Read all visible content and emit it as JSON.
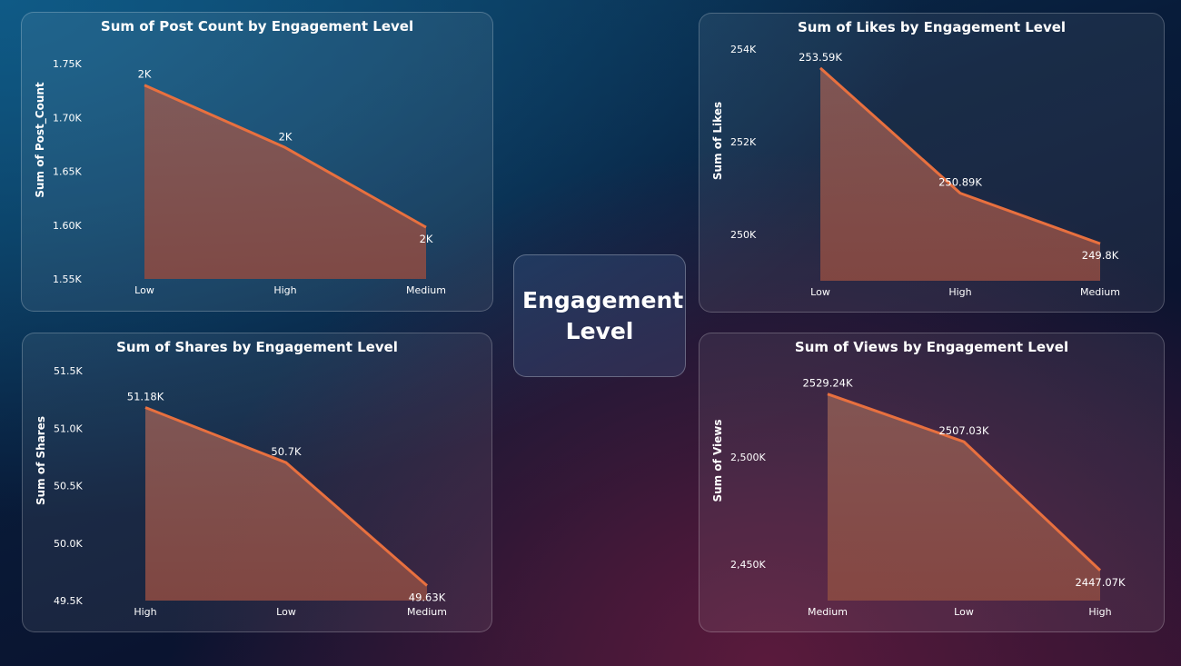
{
  "center_label": "Engagement Level",
  "colors": {
    "line": "#e8703f",
    "fill_top": "#8a5a55",
    "fill_bottom": "#8a4a42"
  },
  "chart_data": [
    {
      "type": "area",
      "title": "Sum of Post Count by Engagement Level",
      "ylabel": "Sum of Post_Count",
      "categories": [
        "Low",
        "High",
        "Medium"
      ],
      "values": [
        1730,
        1672,
        1598
      ],
      "data_labels": [
        "2K",
        "2K",
        "2K"
      ],
      "yticks": [
        1550,
        1600,
        1650,
        1700,
        1750
      ],
      "ytick_labels": [
        "1.55K",
        "1.60K",
        "1.65K",
        "1.70K",
        "1.75K"
      ],
      "ylim": [
        1550,
        1750
      ]
    },
    {
      "type": "area",
      "title": "Sum of Likes by Engagement Level",
      "ylabel": "Sum of Likes",
      "categories": [
        "Low",
        "High",
        "Medium"
      ],
      "values": [
        253590,
        250890,
        249800
      ],
      "data_labels": [
        "253.59K",
        "250.89K",
        "249.8K"
      ],
      "yticks": [
        250000,
        252000,
        254000
      ],
      "ytick_labels": [
        "250K",
        "252K",
        "254K"
      ],
      "ylim": [
        249000,
        254000
      ]
    },
    {
      "type": "area",
      "title": "Sum of Shares by Engagement Level",
      "ylabel": "Sum of Shares",
      "categories": [
        "High",
        "Low",
        "Medium"
      ],
      "values": [
        51180,
        50700,
        49630
      ],
      "data_labels": [
        "51.18K",
        "50.7K",
        "49.63K"
      ],
      "yticks": [
        49500,
        50000,
        50500,
        51000,
        51500
      ],
      "ytick_labels": [
        "49.5K",
        "50.0K",
        "50.5K",
        "51.0K",
        "51.5K"
      ],
      "ylim": [
        49500,
        51500
      ]
    },
    {
      "type": "area",
      "title": "Sum of Views by Engagement Level",
      "ylabel": "Sum of Views",
      "categories": [
        "Medium",
        "Low",
        "High"
      ],
      "values": [
        2529240,
        2507030,
        2447070
      ],
      "data_labels": [
        "2529.24K",
        "2507.03K",
        "2447.07K"
      ],
      "yticks": [
        2450000,
        2500000
      ],
      "ytick_labels": [
        "2,450K",
        "2,500K"
      ],
      "ylim": [
        2433000,
        2538000
      ]
    }
  ]
}
